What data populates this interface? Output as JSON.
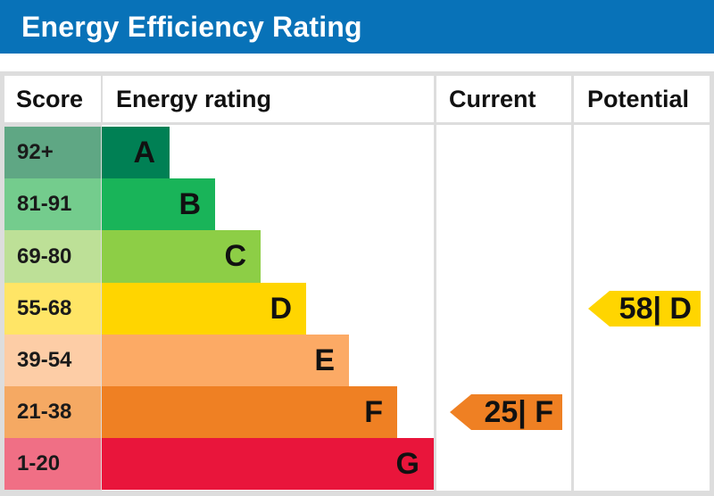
{
  "header": {
    "title": "Energy Efficiency Rating"
  },
  "columns": {
    "score": "Score",
    "rating": "Energy rating",
    "current": "Current",
    "potential": "Potential"
  },
  "colors": {
    "header_bg": "#0872b8",
    "grid": "#dddddd"
  },
  "chart_data": {
    "type": "bar",
    "title": "Energy Efficiency Rating",
    "bands": [
      {
        "score": "92+",
        "letter": "A",
        "color": "#008054",
        "score_bg": "#5fa784"
      },
      {
        "score": "81-91",
        "letter": "B",
        "color": "#19b459",
        "score_bg": "#74cc8d"
      },
      {
        "score": "69-80",
        "letter": "C",
        "color": "#8dce46",
        "score_bg": "#bde097"
      },
      {
        "score": "55-68",
        "letter": "D",
        "color": "#ffd500",
        "score_bg": "#ffe566"
      },
      {
        "score": "39-54",
        "letter": "E",
        "color": "#fcaa65",
        "score_bg": "#fdcda6"
      },
      {
        "score": "21-38",
        "letter": "F",
        "color": "#ef8023",
        "score_bg": "#f5a963"
      },
      {
        "score": "1-20",
        "letter": "G",
        "color": "#e9153b",
        "score_bg": "#f06f85"
      }
    ],
    "current": {
      "value": 25,
      "letter": "F",
      "label": "25| F",
      "color": "#ef8023"
    },
    "potential": {
      "value": 58,
      "letter": "D",
      "label": "58| D",
      "color": "#ffd500"
    }
  }
}
